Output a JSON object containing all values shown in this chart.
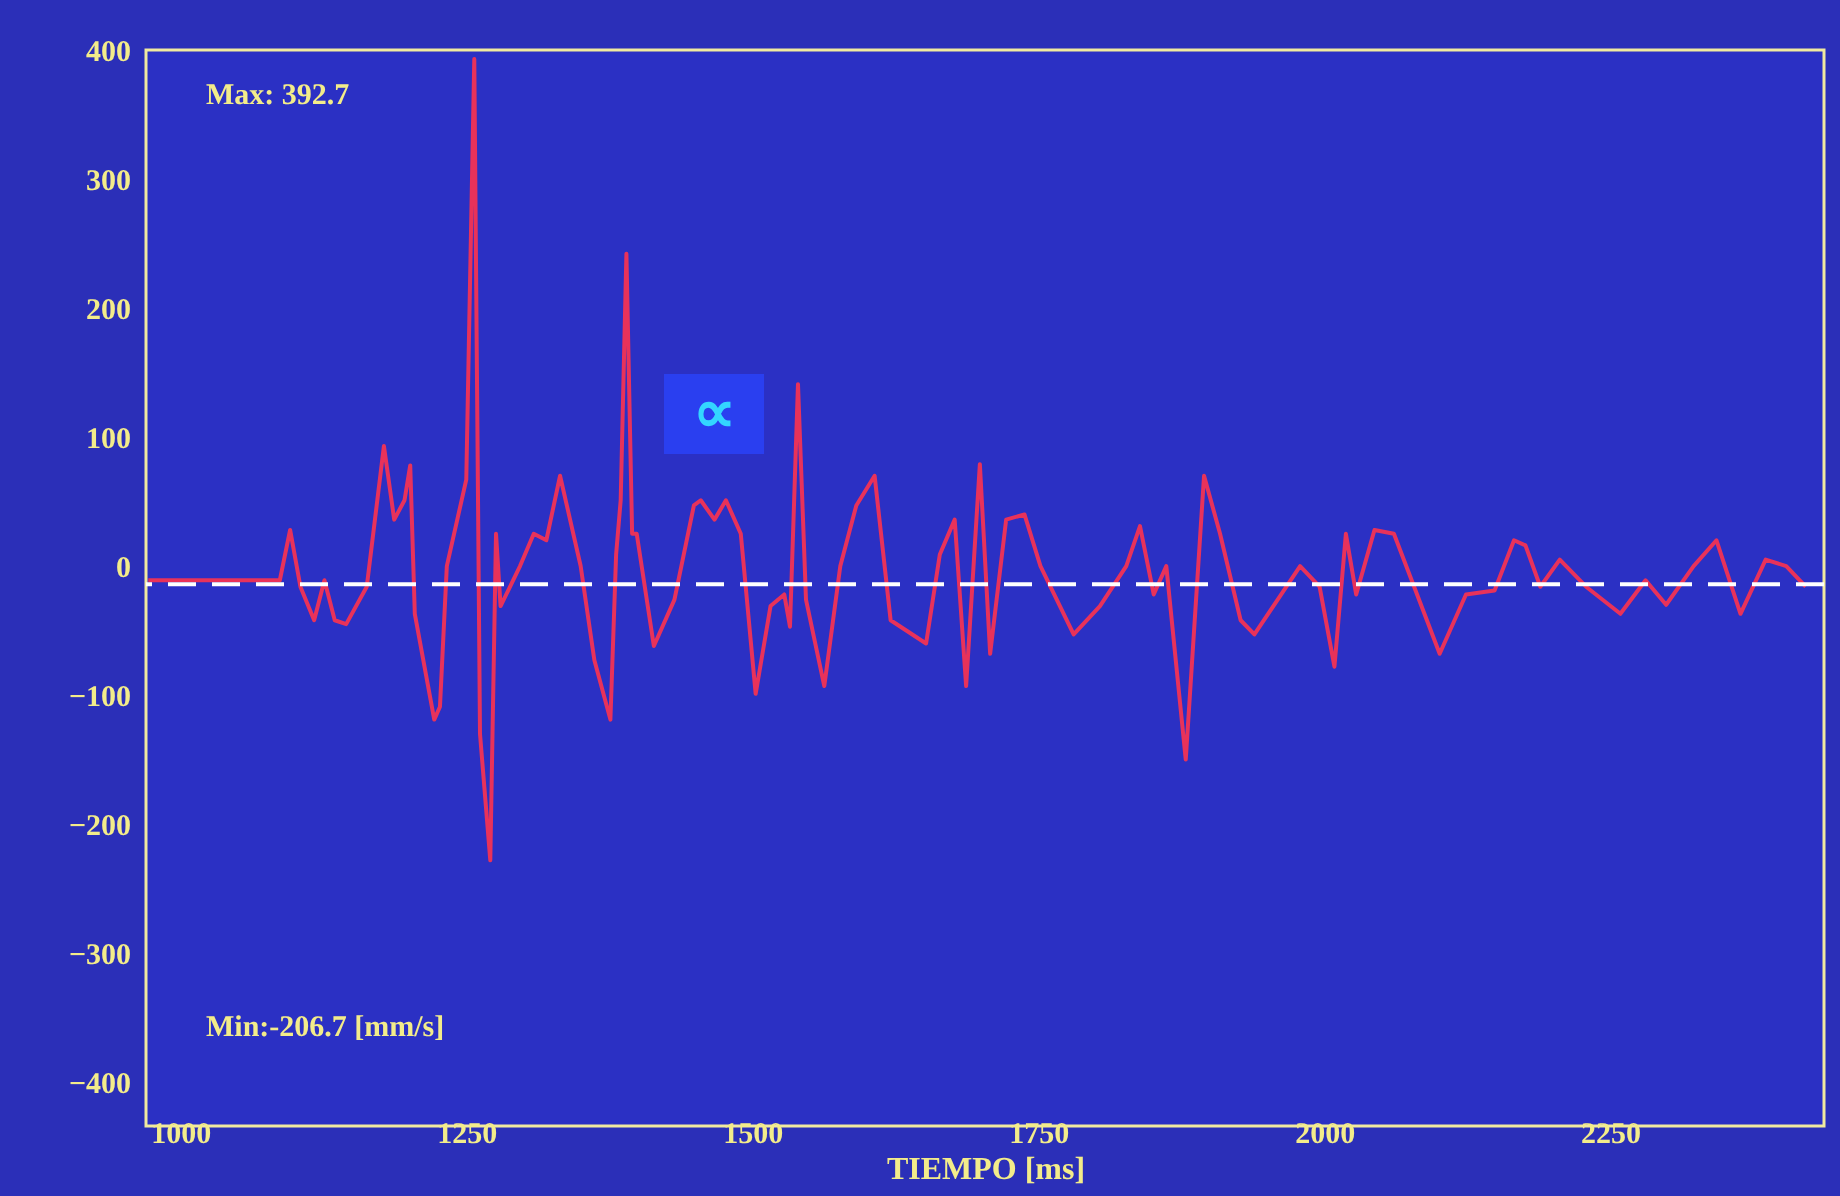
{
  "chart_data": {
    "type": "line",
    "xlabel": "TIEMPO [ms]",
    "annotations": [
      "Max: 392.7",
      "Min:-206.7 [mm/s]",
      "∝"
    ],
    "xlim": [
      970,
      2437
    ],
    "ylim": [
      -434,
      400
    ],
    "xticks": [
      1000,
      1250,
      1500,
      1750,
      2000,
      2250
    ],
    "yticks": [
      -400,
      -300,
      -200,
      -100,
      0,
      100,
      200,
      300,
      400
    ],
    "grid": false,
    "marker": "none",
    "line_style": "solid",
    "ref_lines": [
      {
        "axis": "y",
        "value": -14,
        "color": "#ffffff",
        "line_style": "dashed"
      }
    ],
    "series": [
      {
        "color": "#e8325a",
        "x": [
          972,
          1087,
          1096,
          1105,
          1117,
          1126,
          1135,
          1145,
          1163,
          1178,
          1187,
          1196,
          1201,
          1205,
          1222,
          1227,
          1233,
          1250,
          1257,
          1262,
          1271,
          1276,
          1280,
          1297,
          1309,
          1320,
          1332,
          1350,
          1362,
          1376,
          1381,
          1385,
          1390,
          1395,
          1399,
          1414,
          1432,
          1449,
          1455,
          1467,
          1477,
          1490,
          1503,
          1516,
          1528,
          1533,
          1540,
          1547,
          1563,
          1577,
          1591,
          1607,
          1621,
          1652,
          1664,
          1677,
          1687,
          1699,
          1708,
          1722,
          1738,
          1752,
          1781,
          1804,
          1827,
          1839,
          1851,
          1862,
          1879,
          1895,
          1909,
          1927,
          1939,
          1979,
          1996,
          2009,
          2019,
          2028,
          2044,
          2061,
          2101,
          2124,
          2149,
          2166,
          2176,
          2189,
          2206,
          2229,
          2259,
          2281,
          2299,
          2323,
          2343,
          2364,
          2386,
          2404,
          2421
        ],
        "values": [
          -11,
          -11,
          28,
          -16,
          -42,
          -11,
          -42,
          -45,
          -16,
          93,
          36,
          51,
          78,
          -37,
          -119,
          -109,
          0,
          67,
          393,
          -130,
          -228,
          25,
          -31,
          0,
          25,
          20,
          70,
          0,
          -73,
          -119,
          9,
          51,
          242,
          25,
          25,
          -62,
          -26,
          47,
          51,
          36,
          51,
          25,
          -99,
          -31,
          -22,
          -47,
          141,
          -26,
          -93,
          0,
          47,
          70,
          -42,
          -60,
          9,
          36,
          -93,
          79,
          -68,
          36,
          40,
          0,
          -53,
          -31,
          0,
          31,
          -22,
          0,
          -150,
          70,
          25,
          -42,
          -53,
          0,
          -16,
          -78,
          25,
          -22,
          28,
          25,
          -68,
          -22,
          -19,
          20,
          16,
          -16,
          5,
          -16,
          -37,
          -11,
          -30,
          0,
          20,
          -37,
          5,
          0,
          -16
        ]
      }
    ]
  }
}
